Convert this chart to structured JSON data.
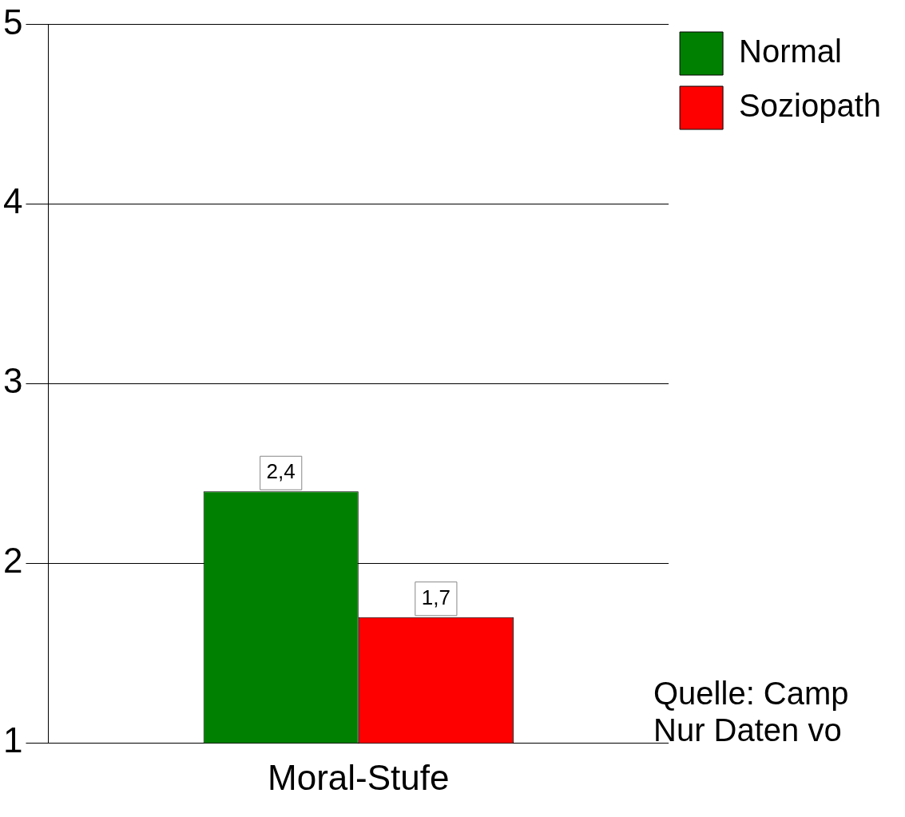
{
  "chart_data": {
    "type": "bar",
    "categories": [
      "Moral-Stufe"
    ],
    "series": [
      {
        "name": "Normal",
        "color": "#008000",
        "values": [
          2.4
        ],
        "value_labels": [
          "2,4"
        ]
      },
      {
        "name": "Soziopath",
        "color": "#ff0000",
        "values": [
          1.7
        ],
        "value_labels": [
          "1,7"
        ]
      }
    ],
    "ylim": [
      1,
      5
    ],
    "yticks": [
      1,
      2,
      3,
      4,
      5
    ],
    "grid": "y",
    "legend": "top right",
    "annotations": [
      "Quelle: Camp",
      "Nur Daten vo"
    ]
  }
}
